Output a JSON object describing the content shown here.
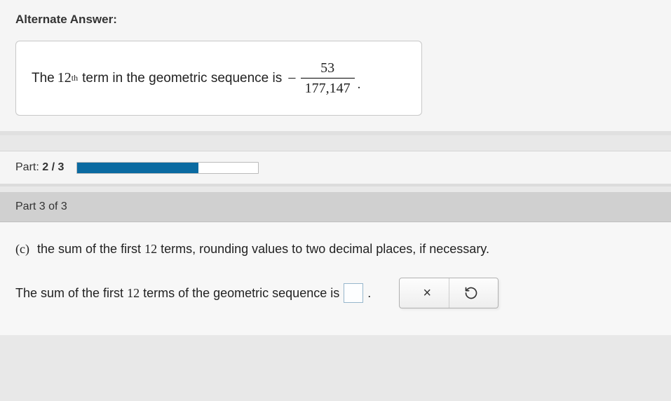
{
  "alt_answer": {
    "heading": "Alternate Answer:",
    "sentence_prefix": "The",
    "term_number": "12",
    "ordinal_suffix": "th",
    "sentence_mid": "term in the geometric sequence is",
    "minus_sign": "−",
    "fraction_numerator": "53",
    "fraction_denominator": "177,147",
    "period": "."
  },
  "progress": {
    "label_prefix": "Part:",
    "current": "2",
    "separator": "/",
    "total": "3",
    "fill_percent": 66.7,
    "fill_color": "#0a6aa1",
    "track_color": "#ffffff"
  },
  "part3": {
    "header": "Part 3 of 3",
    "q_label": "(c)",
    "q_text_before_num": "the sum of the first",
    "q_num": "12",
    "q_text_after_num": "terms, rounding values to two decimal places, if necessary.",
    "a_text_before_num": "The sum of the first",
    "a_num": "12",
    "a_text_after_num": "terms of the geometric sequence is",
    "period": ".",
    "input_value": ""
  },
  "actions": {
    "clear_label": "clear",
    "reset_label": "reset"
  },
  "colors": {
    "page_bg": "#e8e8e8",
    "panel_bg": "#f5f5f5",
    "box_bg": "#ffffff",
    "box_border": "#c8c8c8",
    "header_bg": "#d0d0d0",
    "input_border": "#97b6cc"
  }
}
